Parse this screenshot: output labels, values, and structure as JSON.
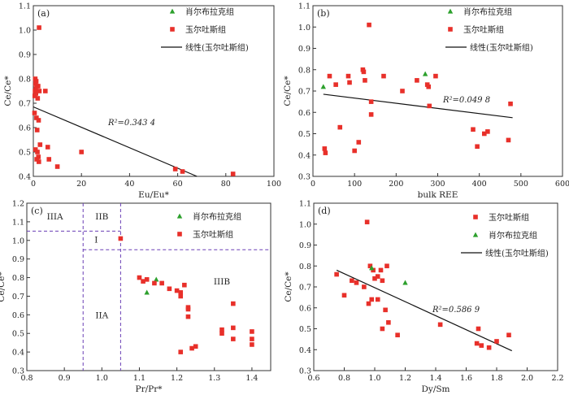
{
  "chart_data": [
    {
      "type": "scatter",
      "panel_label": "(a)",
      "xlabel": "Eu/Eu*",
      "ylabel": "Ce/Ce*",
      "xlim": [
        0,
        100
      ],
      "ylim": [
        0.4,
        1.1
      ],
      "xticks": [
        "0",
        "20",
        "40",
        "60",
        "80",
        "100"
      ],
      "yticks": [
        "0.4",
        "0.5",
        "0.6",
        "0.7",
        "0.8",
        "0.9",
        "1.0",
        "1.1"
      ],
      "legend": [
        "肖尔布拉克组",
        "玉尔吐斯组",
        "线性(玉尔吐斯组)"
      ],
      "legend_position": "top-right",
      "annotation": "R²=0.343 4",
      "series": [
        {
          "name": "肖尔布拉克组",
          "marker": "triangle",
          "color": "#2ca02c",
          "points": []
        },
        {
          "name": "玉尔吐斯组",
          "marker": "square",
          "color": "#e8302a",
          "points": [
            [
              0.8,
              0.8
            ],
            [
              1.2,
              0.79
            ],
            [
              0.9,
              0.78
            ],
            [
              1.5,
              0.77
            ],
            [
              2.0,
              0.77
            ],
            [
              1.0,
              0.76
            ],
            [
              0.7,
              0.75
            ],
            [
              2.5,
              0.75
            ],
            [
              1.1,
              0.74
            ],
            [
              0.6,
              0.73
            ],
            [
              1.8,
              0.72
            ],
            [
              0.5,
              0.66
            ],
            [
              1.3,
              0.64
            ],
            [
              2.2,
              0.63
            ],
            [
              1.6,
              0.59
            ],
            [
              2.8,
              0.53
            ],
            [
              0.9,
              0.51
            ],
            [
              1.7,
              0.5
            ],
            [
              2.1,
              0.48
            ],
            [
              1.4,
              0.47
            ],
            [
              2.3,
              0.46
            ],
            [
              2.4,
              1.01
            ],
            [
              5.0,
              0.75
            ],
            [
              6.0,
              0.52
            ],
            [
              6.5,
              0.47
            ],
            [
              10.0,
              0.44
            ],
            [
              20.0,
              0.5
            ],
            [
              59.0,
              0.43
            ],
            [
              62.0,
              0.42
            ],
            [
              83.0,
              0.41
            ]
          ]
        }
      ],
      "trendline": {
        "name": "线性(玉尔吐斯组)",
        "x": [
          0,
          68
        ],
        "y": [
          0.685,
          0.4
        ]
      }
    },
    {
      "type": "scatter",
      "panel_label": "(b)",
      "xlabel": "bulk REE",
      "ylabel": "Ce/Ce*",
      "xlim": [
        0,
        600
      ],
      "ylim": [
        0.3,
        1.1
      ],
      "xticks": [
        "0",
        "100",
        "200",
        "300",
        "400",
        "500",
        "600"
      ],
      "yticks": [
        "0.3",
        "0.4",
        "0.5",
        "0.6",
        "0.7",
        "0.8",
        "0.9",
        "1.0",
        "1.1"
      ],
      "legend": [
        "肖尔布拉克组",
        "玉尔吐斯组",
        "线性(玉尔吐斯组)"
      ],
      "legend_position": "top-right",
      "annotation": "R²=0.049 8",
      "series": [
        {
          "name": "肖尔布拉克组",
          "marker": "triangle",
          "color": "#2ca02c",
          "points": [
            [
              25,
              0.72
            ],
            [
              270,
              0.78
            ]
          ]
        },
        {
          "name": "玉尔吐斯组",
          "marker": "square",
          "color": "#e8302a",
          "points": [
            [
              135,
              1.01
            ],
            [
              120,
              0.8
            ],
            [
              122,
              0.79
            ],
            [
              40,
              0.77
            ],
            [
              85,
              0.77
            ],
            [
              170,
              0.77
            ],
            [
              295,
              0.77
            ],
            [
              55,
              0.73
            ],
            [
              88,
              0.74
            ],
            [
              125,
              0.75
            ],
            [
              250,
              0.75
            ],
            [
              275,
              0.73
            ],
            [
              278,
              0.72
            ],
            [
              215,
              0.7
            ],
            [
              140,
              0.65
            ],
            [
              280,
              0.63
            ],
            [
              140,
              0.59
            ],
            [
              475,
              0.64
            ],
            [
              65,
              0.53
            ],
            [
              385,
              0.52
            ],
            [
              420,
              0.51
            ],
            [
              412,
              0.5
            ],
            [
              470,
              0.47
            ],
            [
              110,
              0.46
            ],
            [
              395,
              0.44
            ],
            [
              100,
              0.42
            ],
            [
              28,
              0.43
            ],
            [
              30,
              0.41
            ]
          ]
        }
      ],
      "trendline": {
        "name": "线性(玉尔吐斯组)",
        "x": [
          25,
          480
        ],
        "y": [
          0.685,
          0.575
        ]
      }
    },
    {
      "type": "scatter",
      "panel_label": "(c)",
      "xlabel": "Pr/Pr*",
      "ylabel": "Ce/Ce*",
      "xlim": [
        0.8,
        1.45
      ],
      "ylim": [
        0.3,
        1.2
      ],
      "xticks": [
        "0.8",
        "0.9",
        "1.0",
        "1.1",
        "1.2",
        "1.3",
        "1.4"
      ],
      "yticks": [
        "0.3",
        "0.4",
        "0.5",
        "0.6",
        "0.7",
        "0.8",
        "0.9",
        "1.0",
        "1.1",
        "1.2"
      ],
      "legend": [
        "肖尔布拉克组",
        "玉尔吐斯组"
      ],
      "legend_position": "top-right",
      "field_labels": [
        "IIIA",
        "IIB",
        "I",
        "IIA",
        "IIIB"
      ],
      "series": [
        {
          "name": "肖尔布拉克组",
          "marker": "triangle",
          "color": "#2ca02c",
          "points": [
            [
              1.145,
              0.79
            ],
            [
              1.12,
              0.72
            ]
          ]
        },
        {
          "name": "玉尔吐斯组",
          "marker": "square",
          "color": "#e8302a",
          "points": [
            [
              1.05,
              1.01
            ],
            [
              1.1,
              0.8
            ],
            [
              1.12,
              0.79
            ],
            [
              1.11,
              0.78
            ],
            [
              1.14,
              0.77
            ],
            [
              1.16,
              0.77
            ],
            [
              1.18,
              0.74
            ],
            [
              1.2,
              0.73
            ],
            [
              1.22,
              0.76
            ],
            [
              1.21,
              0.72
            ],
            [
              1.21,
              0.7
            ],
            [
              1.23,
              0.64
            ],
            [
              1.23,
              0.63
            ],
            [
              1.23,
              0.59
            ],
            [
              1.35,
              0.66
            ],
            [
              1.35,
              0.53
            ],
            [
              1.32,
              0.52
            ],
            [
              1.32,
              0.5
            ],
            [
              1.4,
              0.51
            ],
            [
              1.4,
              0.47
            ],
            [
              1.4,
              0.44
            ],
            [
              1.35,
              0.47
            ],
            [
              1.25,
              0.43
            ],
            [
              1.24,
              0.42
            ],
            [
              1.21,
              0.4
            ]
          ]
        }
      ],
      "boundaries": {
        "vertical_x": [
          0.95,
          1.05
        ],
        "horizontal_y": [
          1.05,
          0.95
        ]
      }
    },
    {
      "type": "scatter",
      "panel_label": "(d)",
      "xlabel": "Dy/Sm",
      "ylabel": "Ce/Ce*",
      "xlim": [
        0.6,
        2.2
      ],
      "ylim": [
        0.3,
        1.1
      ],
      "xticks": [
        "0.6",
        "0.8",
        "1.0",
        "1.2",
        "1.4",
        "1.6",
        "1.8",
        "2.0",
        "2.2"
      ],
      "yticks": [
        "0.3",
        "0.4",
        "0.5",
        "0.6",
        "0.7",
        "0.8",
        "0.9",
        "1.0",
        "1.1"
      ],
      "legend": [
        "玉尔吐斯组",
        "肖尔布拉克组",
        "线性(玉尔吐斯组)"
      ],
      "legend_position": "top-right",
      "annotation": "R²=0.586 9",
      "series": [
        {
          "name": "玉尔吐斯组",
          "marker": "square",
          "color": "#e8302a",
          "points": [
            [
              0.95,
              1.01
            ],
            [
              0.75,
              0.76
            ],
            [
              0.97,
              0.8
            ],
            [
              0.99,
              0.78
            ],
            [
              1.04,
              0.78
            ],
            [
              1.08,
              0.8
            ],
            [
              1.02,
              0.75
            ],
            [
              1.0,
              0.74
            ],
            [
              0.85,
              0.73
            ],
            [
              0.88,
              0.72
            ],
            [
              0.93,
              0.7
            ],
            [
              1.05,
              0.73
            ],
            [
              0.8,
              0.66
            ],
            [
              0.98,
              0.64
            ],
            [
              1.02,
              0.64
            ],
            [
              1.07,
              0.59
            ],
            [
              0.96,
              0.62
            ],
            [
              1.09,
              0.53
            ],
            [
              1.43,
              0.52
            ],
            [
              1.05,
              0.5
            ],
            [
              1.68,
              0.5
            ],
            [
              1.15,
              0.47
            ],
            [
              1.88,
              0.47
            ],
            [
              1.67,
              0.43
            ],
            [
              1.8,
              0.44
            ],
            [
              1.7,
              0.42
            ],
            [
              1.75,
              0.41
            ]
          ]
        },
        {
          "name": "肖尔布拉克组",
          "marker": "triangle",
          "color": "#2ca02c",
          "points": [
            [
              1.2,
              0.72
            ],
            [
              0.98,
              0.79
            ]
          ]
        }
      ],
      "trendline": {
        "name": "线性(玉尔吐斯组)",
        "x": [
          0.75,
          1.9
        ],
        "y": [
          0.78,
          0.395
        ]
      }
    }
  ]
}
